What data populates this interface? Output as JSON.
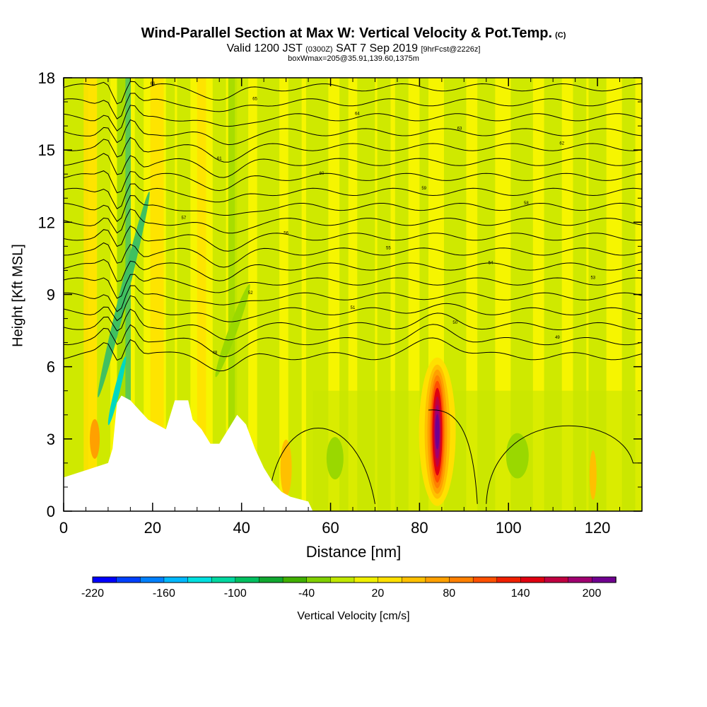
{
  "chart_data": {
    "type": "heatmap",
    "title": "Wind-Parallel Section at Max W: Vertical Velocity & Pot.Temp.",
    "title_mark": "(C)",
    "subtitle_main": "Valid 1200 JST",
    "subtitle_utc": "(0300Z)",
    "subtitle_date": "SAT 7 Sep 2019",
    "subtitle_fcst": "[9hrFcst@2226z]",
    "subline": "boxWmax=205@35.91,139.60,1375m",
    "xlabel": "Distance [nm]",
    "ylabel": "Height [Kft MSL]",
    "xlim": [
      0,
      130
    ],
    "ylim": [
      0,
      18
    ],
    "x_ticks": [
      "0",
      "20",
      "40",
      "60",
      "80",
      "100",
      "120"
    ],
    "y_ticks": [
      "0",
      "3",
      "6",
      "9",
      "12",
      "15",
      "18"
    ],
    "colorbar": {
      "label": "Vertical Velocity [cm/s]",
      "tick_labels": [
        "-220",
        "-160",
        "-100",
        "-40",
        "20",
        "80",
        "140",
        "200"
      ],
      "colors": [
        "#0000ff",
        "#0040ff",
        "#0080ff",
        "#00b8ff",
        "#00e0e0",
        "#00d8a0",
        "#00c060",
        "#10a830",
        "#40b000",
        "#80d000",
        "#c0e800",
        "#f0f000",
        "#ffe000",
        "#ffc000",
        "#ffa000",
        "#ff8000",
        "#ff5000",
        "#f02000",
        "#e00010",
        "#c00040",
        "#a00070",
        "#700090"
      ]
    },
    "series": [
      {
        "name": "Vertical Velocity",
        "max": 205
      },
      {
        "name": "Pot.Temp."
      }
    ],
    "updraft_core": {
      "x": 84,
      "y_range": [
        1.0,
        5.5
      ],
      "max_w": 205
    },
    "terrain_kft": [
      [
        0,
        1.4
      ],
      [
        10,
        2.0
      ],
      [
        11,
        2.6
      ],
      [
        12,
        4.5
      ],
      [
        13,
        4.8
      ],
      [
        15,
        4.6
      ],
      [
        17,
        4.2
      ],
      [
        19,
        3.8
      ],
      [
        21,
        3.6
      ],
      [
        23,
        3.4
      ],
      [
        25,
        4.6
      ],
      [
        28,
        4.6
      ],
      [
        29,
        3.8
      ],
      [
        31,
        3.4
      ],
      [
        33,
        2.8
      ],
      [
        35,
        2.8
      ],
      [
        37,
        3.4
      ],
      [
        39,
        4.0
      ],
      [
        41,
        3.6
      ],
      [
        43,
        2.6
      ],
      [
        45,
        1.8
      ],
      [
        47,
        1.2
      ],
      [
        49,
        0.8
      ],
      [
        51,
        0.6
      ],
      [
        55,
        0.4
      ],
      [
        56,
        0
      ],
      [
        130,
        0
      ]
    ],
    "contour_labels": [
      "66",
      "65",
      "64",
      "63",
      "62",
      "61",
      "60",
      "59",
      "58",
      "57",
      "56",
      "55",
      "54",
      "53",
      "52",
      "51",
      "50",
      "49",
      "48"
    ]
  }
}
